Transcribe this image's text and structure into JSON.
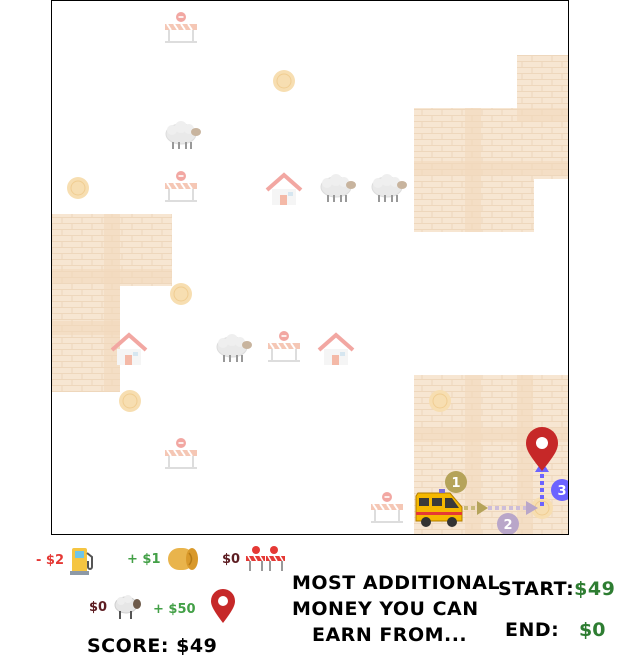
{
  "legend": {
    "fuel": {
      "value": "- $2",
      "icon": "fuel-pump-icon"
    },
    "hay": {
      "value": "+ $1",
      "icon": "hay-bale-icon"
    },
    "barrier": {
      "value": "$0",
      "icon": "road-barrier-icon"
    },
    "sheep": {
      "value": "$0",
      "icon": "sheep-icon"
    },
    "destination": {
      "value": "+ $50",
      "icon": "map-pin-icon"
    }
  },
  "score": {
    "label": "SCORE:",
    "value": "$49"
  },
  "question": {
    "line1": "MOST ADDITIONAL",
    "line2": "MONEY YOU CAN",
    "line3": "EARN FROM..."
  },
  "start": {
    "label": "START:",
    "value": "$49"
  },
  "end": {
    "label": "END:",
    "value": "$0"
  },
  "route": {
    "steps": [
      "1",
      "2",
      "3"
    ]
  },
  "colors": {
    "brick": "#f6e3cc",
    "pin": "#c62828",
    "van": "#f5b800",
    "route_step1": "#b5a35a",
    "route_step2": "#b9a6c9",
    "route_step3": "#6c63ff"
  }
}
